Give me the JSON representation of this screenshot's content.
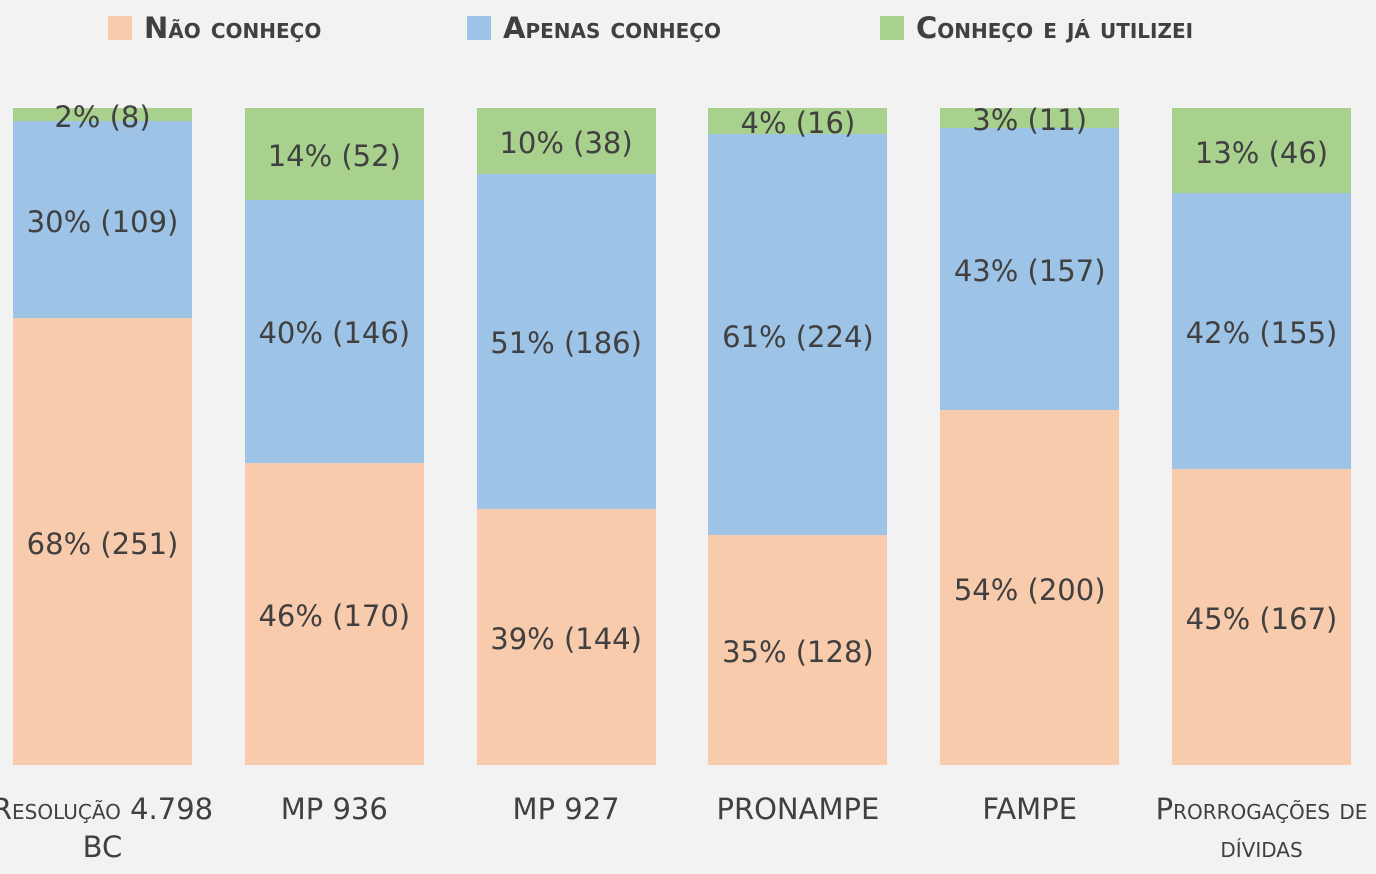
{
  "chart_data": {
    "type": "stacked_bar_100",
    "categories": [
      "Resolução 4.798 BC",
      "MP 936",
      "MP 927",
      "PRONAMPE",
      "FAMPE",
      "Prorrogações de dívidas"
    ],
    "ylim": [
      0,
      100
    ],
    "legend": "top",
    "series": [
      {
        "name": "Não conheço",
        "color": "#f8cbad",
        "values": [
          68,
          46,
          39,
          35,
          54,
          45
        ],
        "value_labels": [
          "68% (251)",
          "46% (170)",
          "39% (144)",
          "35% (128)",
          "54% (200)",
          "45% (167)"
        ]
      },
      {
        "name": "Apenas conheço",
        "color": "#9dc3e6",
        "values": [
          30,
          40,
          51,
          61,
          43,
          42
        ],
        "value_labels": [
          "30% (109)",
          "40% (146)",
          "51% (186)",
          "61% (224)",
          "43% (157)",
          "42% (155)"
        ]
      },
      {
        "name": "Conheço e já utilizei",
        "color": "#a9d18e",
        "values": [
          2,
          14,
          10,
          4,
          3,
          13
        ],
        "value_labels": [
          "2% (8)",
          "14% (52)",
          "10% (38)",
          "4% (16)",
          "3% (11)",
          "13% (46)"
        ]
      }
    ]
  }
}
